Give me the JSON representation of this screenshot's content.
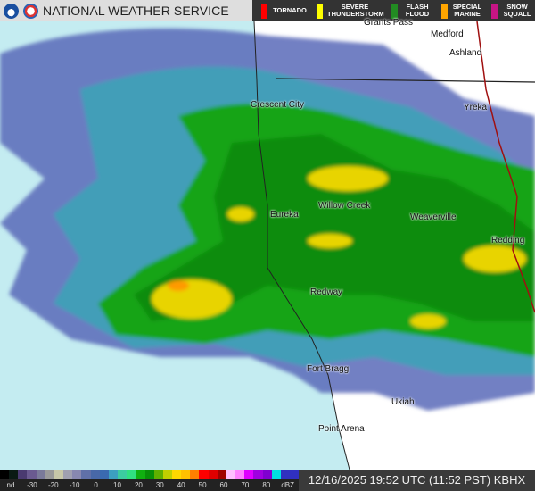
{
  "header": {
    "title": "NATIONAL WEATHER SERVICE",
    "logos": [
      "noaa-logo",
      "nws-logo"
    ]
  },
  "warnings": [
    {
      "label": "TORNADO",
      "color": "#ff0000"
    },
    {
      "label": "SEVERE THUNDERSTORM",
      "color": "#ffff00"
    },
    {
      "label": "FLASH FLOOD",
      "color": "#228b22"
    },
    {
      "label": "SPECIAL MARINE",
      "color": "#ffa500"
    },
    {
      "label": "SNOW SQUALL",
      "color": "#c71585"
    }
  ],
  "cities": [
    "Grants Pass",
    "Medford",
    "Ashland",
    "Crescent City",
    "Yreka",
    "Willow Creek",
    "Eureka",
    "Weaverville",
    "Redding",
    "Redway",
    "Fort Bragg",
    "Ukiah",
    "Point Arena"
  ],
  "colorbar": {
    "labels": [
      "nd",
      "-30",
      "-20",
      "-10",
      "0",
      "10",
      "20",
      "30",
      "40",
      "50",
      "60",
      "70",
      "80",
      "dBZ"
    ],
    "colors": [
      "#000000",
      "#0a1a14",
      "#4a3a70",
      "#6a5a90",
      "#7a7a9a",
      "#9a9a9a",
      "#c8c8a8",
      "#a0a0b0",
      "#8888b0",
      "#6070a8",
      "#4868a8",
      "#3a6ab0",
      "#3ca0c0",
      "#3ccca0",
      "#30e080",
      "#10b010",
      "#089008",
      "#60b000",
      "#c0d000",
      "#ffd800",
      "#ffc000",
      "#ff8000",
      "#ff0000",
      "#e00000",
      "#a00000",
      "#ffc0ff",
      "#ff80ff",
      "#e000ff",
      "#a000e0",
      "#8000d0",
      "#00e0e0",
      "#3030c0",
      "#3030c0"
    ]
  },
  "status": "12/16/2025 19:52 UTC (11:52 PST) KBHX",
  "colors": {
    "water": "#c4ecf1",
    "land": "#ffffff",
    "header_dark": "#333333"
  }
}
